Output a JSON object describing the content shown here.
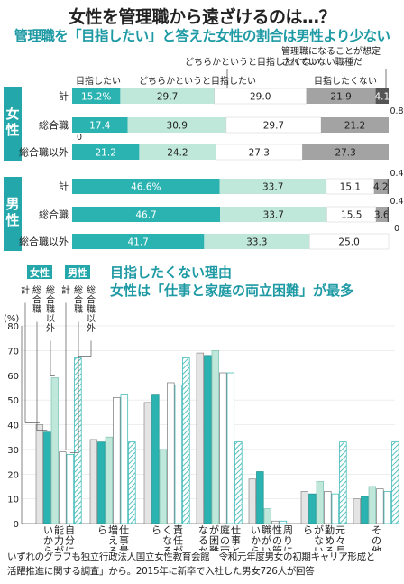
{
  "title": "女性を管理職から遠ざけるのは…？",
  "subtitle": "管理職を「目指したい」と答えた女性の割合は男性より少ない",
  "colors": {
    "teal": "#2bb3b1",
    "light_teal": "#bfe7da",
    "white_seg": "#ffffff",
    "gray": "#a3a3a3",
    "dark_gray": "#555555",
    "cat_label_bg": "#23a7ab",
    "line_chart_title": "#1e9aa4"
  },
  "chart_data": [
    {
      "type": "bar",
      "orientation": "horizontal",
      "stacked": true,
      "percent": true,
      "series_names": [
        "目指したい",
        "どちらかというと目指したい",
        "どちらかというと目指したくない",
        "目指したくない",
        "管理職になることが想定されていない職種だ"
      ],
      "groups": [
        {
          "name": "女性",
          "rows": [
            {
              "label": "計",
              "values": [
                15.2,
                29.7,
                29.0,
                21.9,
                4.1
              ],
              "extra_label": "0.8"
            },
            {
              "label": "総合職",
              "values": [
                17.4,
                30.9,
                29.7,
                21.2,
                0.0
              ],
              "extra_label": "0"
            },
            {
              "label": "総合職以外",
              "values": [
                21.2,
                24.2,
                27.3,
                27.3,
                0.0
              ]
            }
          ]
        },
        {
          "name": "男性",
          "rows": [
            {
              "label": "計",
              "values": [
                46.6,
                33.7,
                15.1,
                4.2,
                0.4
              ],
              "extra_label": "0.4"
            },
            {
              "label": "総合職",
              "values": [
                46.7,
                33.7,
                15.5,
                3.6,
                0.4
              ],
              "extra_label": "0.4"
            },
            {
              "label": "総合職以外",
              "values": [
                41.7,
                33.3,
                25.0,
                0.0,
                0.0
              ],
              "extra_label": "0"
            }
          ]
        }
      ],
      "value_labels": [
        [
          "15.2%",
          "29.7",
          "29.0",
          "21.9",
          "4.1"
        ],
        [
          "17.4",
          "30.9",
          "29.7",
          "21.2",
          ""
        ],
        [
          "21.2",
          "24.2",
          "27.3",
          "27.3",
          ""
        ],
        [
          "46.6%",
          "33.7",
          "15.1",
          "4.2",
          ""
        ],
        [
          "46.7",
          "33.7",
          "15.5",
          "3.6",
          ""
        ],
        [
          "41.7",
          "33.3",
          "25.0",
          "",
          ""
        ]
      ]
    },
    {
      "type": "bar",
      "title": "目指したくない理由",
      "subtitle": "女性は「仕事と家庭の両立困難」が最多",
      "ylabel": "(%)",
      "ylim": [
        0,
        80
      ],
      "yticks": [
        0,
        10,
        20,
        30,
        40,
        50,
        60,
        70,
        80
      ],
      "categories": [
        "自分には能力がないから",
        "仕事量が増えるから",
        "責任が重くなるから",
        "仕事と家庭の両立が困難になるから",
        "周りに同性の管理職がいないから",
        "元々長く勤める気がないから",
        "その他"
      ],
      "legend_groups": [
        "女性",
        "男性"
      ],
      "series": [
        {
          "name": "女性 計",
          "values": [
            40,
            34,
            49,
            69,
            18,
            13,
            10
          ]
        },
        {
          "name": "女性 総合職",
          "values": [
            37,
            33,
            52,
            68,
            21,
            12,
            11
          ]
        },
        {
          "name": "女性 総合職以外",
          "values": [
            59,
            35,
            30,
            70,
            6,
            17,
            15
          ]
        },
        {
          "name": "男性 計",
          "values": [
            29,
            51,
            57,
            61,
            1,
            13,
            14
          ]
        },
        {
          "name": "男性 総合職",
          "values": [
            28,
            52,
            56,
            61,
            1,
            12,
            13
          ]
        },
        {
          "name": "男性 総合職以外",
          "values": [
            67,
            33,
            67,
            33,
            0,
            33,
            33
          ]
        }
      ]
    }
  ],
  "note_line1": "いずれのグラフも独立行政法人国立女性教育会館「令和元年度男女の初期キャリア形成と",
  "note_line2": "活躍推進に関する調査」から。2015年に新卒で入社した男女726人が回答"
}
